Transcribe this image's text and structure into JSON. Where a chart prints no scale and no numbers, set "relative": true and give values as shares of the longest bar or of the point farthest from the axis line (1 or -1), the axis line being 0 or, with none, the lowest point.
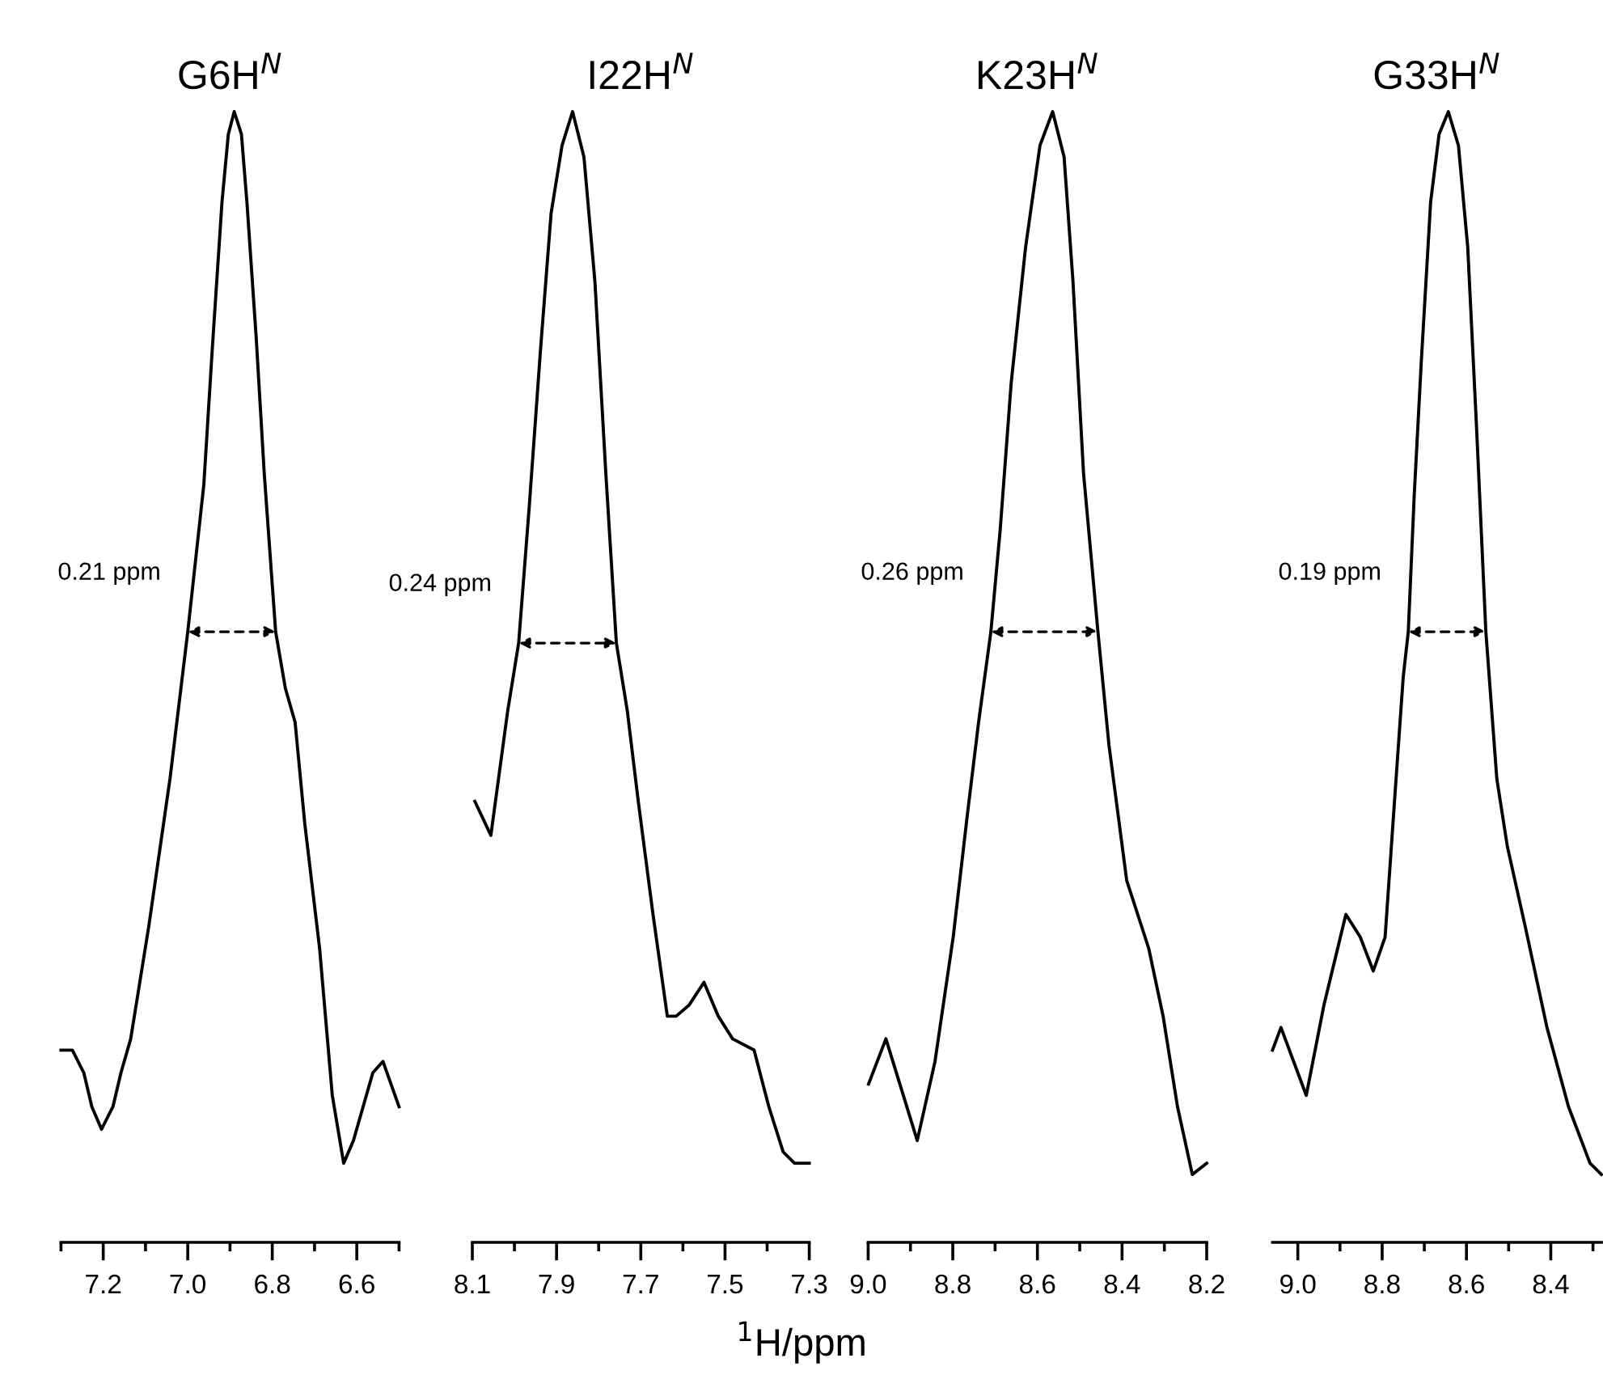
{
  "chart_data": [
    {
      "type": "line",
      "title": "G6H$^{N}$",
      "relative": true,
      "xlim": [
        7.3,
        6.5
      ],
      "xticks": [
        {
          "value": 7.3,
          "label": null
        },
        7.2,
        {
          "value": 7.1,
          "label": null
        },
        {
          "value": 7.0,
          "label": "7.0"
        },
        {
          "value": 6.9,
          "label": null
        },
        6.8,
        {
          "value": 6.7,
          "label": null
        },
        6.6,
        {
          "value": 6.5,
          "label": null
        }
      ],
      "x": [
        7.3,
        7.273,
        7.246,
        7.227,
        7.204,
        7.177,
        7.158,
        7.135,
        7.092,
        7.042,
        7.0,
        6.962,
        6.942,
        6.919,
        6.904,
        6.89,
        6.873,
        6.86,
        6.838,
        6.819,
        6.792,
        6.769,
        6.746,
        6.723,
        6.688,
        6.658,
        6.631,
        6.608,
        6.585,
        6.562,
        6.538,
        6.519,
        6.5
      ],
      "series": [
        {
          "color": "#000000",
          "values": [
            0.17,
            0.17,
            0.15,
            0.12,
            0.1,
            0.12,
            0.15,
            0.18,
            0.28,
            0.41,
            0.54,
            0.67,
            0.79,
            0.92,
            0.98,
            1.0,
            0.98,
            0.92,
            0.8,
            0.68,
            0.54,
            0.49,
            0.46,
            0.37,
            0.26,
            0.13,
            0.07,
            0.09,
            0.12,
            0.15,
            0.16,
            0.14,
            0.12
          ]
        }
      ],
      "annotations": [
        {
          "text": "0.21 ppm",
          "x": 7.0,
          "y": 0.54
        }
      ]
    },
    {
      "type": "line",
      "title": "I22H$^{N}$",
      "relative": true,
      "xlim": [
        8.1,
        7.3
      ],
      "xticks": [
        8.1,
        {
          "value": 8.0,
          "label": null
        },
        7.9,
        {
          "value": 7.8,
          "label": null
        },
        7.7,
        {
          "value": 7.6,
          "label": null
        },
        7.5,
        {
          "value": 7.4,
          "label": null
        },
        7.3
      ],
      "x": [
        8.094,
        8.056,
        8.016,
        7.99,
        7.965,
        7.938,
        7.913,
        7.887,
        7.862,
        7.835,
        7.809,
        7.783,
        7.758,
        7.732,
        7.706,
        7.671,
        7.637,
        7.616,
        7.585,
        7.55,
        7.516,
        7.482,
        7.431,
        7.396,
        7.362,
        7.335,
        7.3
      ],
      "series": [
        {
          "color": "#000000",
          "values": [
            0.39,
            0.36,
            0.47,
            0.53,
            0.65,
            0.79,
            0.91,
            0.97,
            1.0,
            0.96,
            0.85,
            0.68,
            0.53,
            0.47,
            0.39,
            0.29,
            0.2,
            0.2,
            0.21,
            0.23,
            0.2,
            0.18,
            0.17,
            0.12,
            0.08,
            0.07,
            0.07
          ]
        }
      ],
      "annotations": [
        {
          "text": "0.24 ppm",
          "x": 7.99,
          "y": 0.53
        },
        "$^{1}$H/ppm"
      ]
    },
    {
      "type": "line",
      "title": "K23H$^{N}$",
      "relative": true,
      "xlim": [
        9.0,
        8.2
      ],
      "xticks": [
        {
          "value": 9.0,
          "label": "9.0"
        },
        {
          "value": 8.9,
          "label": null
        },
        8.8,
        {
          "value": 8.7,
          "label": null
        },
        8.6,
        {
          "value": 8.5,
          "label": null
        },
        8.4,
        {
          "value": 8.3,
          "label": null
        },
        8.2
      ],
      "x": [
        8.999,
        8.958,
        8.884,
        8.842,
        8.799,
        8.765,
        8.739,
        8.71,
        8.688,
        8.662,
        8.628,
        8.594,
        8.564,
        8.537,
        8.516,
        8.491,
        8.457,
        8.431,
        8.389,
        8.337,
        8.303,
        8.269,
        8.234,
        8.2
      ],
      "series": [
        {
          "color": "#000000",
          "values": [
            0.14,
            0.18,
            0.09,
            0.16,
            0.27,
            0.38,
            0.46,
            0.54,
            0.63,
            0.76,
            0.88,
            0.97,
            1.0,
            0.96,
            0.85,
            0.68,
            0.54,
            0.44,
            0.32,
            0.26,
            0.2,
            0.12,
            0.06,
            0.07
          ]
        }
      ],
      "annotations": [
        {
          "text": "0.26 ppm",
          "x": 8.71,
          "y": 0.54
        }
      ]
    },
    {
      "type": "line",
      "title": "G33H$^{N}$",
      "relative": true,
      "xlim": [
        9.06,
        8.28
      ],
      "xticks": [
        {
          "value": 9.0,
          "label": "9.0"
        },
        {
          "value": 8.9,
          "label": null
        },
        8.8,
        {
          "value": 8.7,
          "label": null
        },
        8.6,
        {
          "value": 8.5,
          "label": null
        },
        8.4,
        {
          "value": 8.3,
          "label": null
        }
      ],
      "x": [
        9.06,
        9.04,
        8.98,
        8.938,
        8.886,
        8.852,
        8.821,
        8.793,
        8.767,
        8.75,
        8.738,
        8.724,
        8.707,
        8.685,
        8.665,
        8.643,
        8.619,
        8.597,
        8.576,
        8.554,
        8.528,
        8.503,
        8.461,
        8.409,
        8.358,
        8.307,
        8.28
      ],
      "series": [
        {
          "color": "#000000",
          "values": [
            0.17,
            0.19,
            0.13,
            0.21,
            0.29,
            0.27,
            0.24,
            0.27,
            0.41,
            0.5,
            0.54,
            0.66,
            0.78,
            0.92,
            0.98,
            1.0,
            0.97,
            0.88,
            0.72,
            0.54,
            0.41,
            0.35,
            0.28,
            0.19,
            0.12,
            0.07,
            0.06
          ]
        }
      ],
      "annotations": [
        {
          "text": "0.19 ppm",
          "x": 8.738,
          "y": 0.54
        }
      ]
    }
  ]
}
